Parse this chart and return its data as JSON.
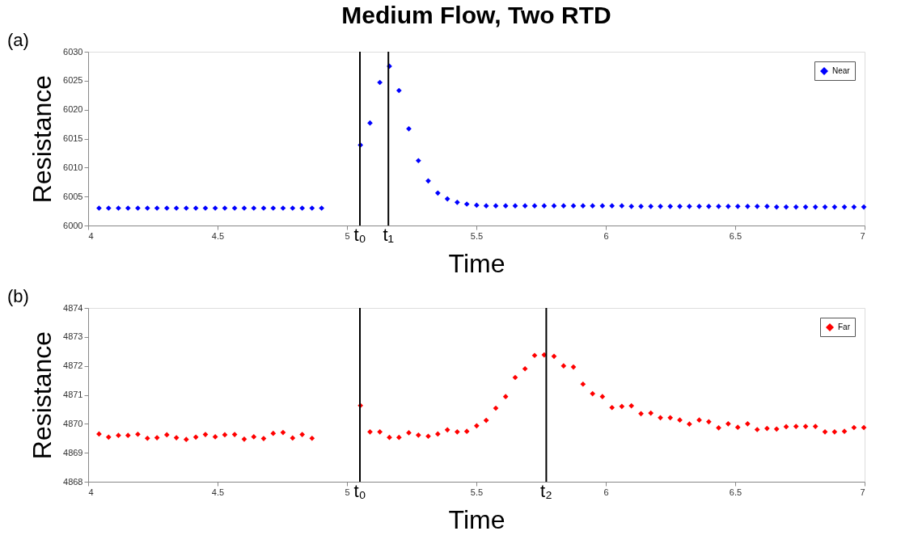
{
  "chart_data": [
    {
      "type": "scatter",
      "title": "Medium Flow, Two RTD",
      "xlabel": "Time",
      "ylabel": "Resistance",
      "annotations": [
        "(a)"
      ],
      "xlim": [
        4,
        7
      ],
      "xticks": [
        4,
        4.5,
        5,
        5.5,
        6,
        6.5,
        7
      ],
      "ylim": [
        6000,
        6030
      ],
      "yticks": [
        6000,
        6005,
        6010,
        6015,
        6020,
        6025,
        6030
      ],
      "grid": false,
      "legend": "top right",
      "marker": "diamond",
      "ref_lines": [
        {
          "axis": "x",
          "value": 5.05,
          "label": "t₀",
          "color": "#000000"
        },
        {
          "axis": "x",
          "value": 5.16,
          "label": "t₁",
          "color": "#000000"
        }
      ],
      "series": [
        {
          "name": "Near",
          "color": "#0000ff",
          "x": [
            4.042,
            4.079,
            4.117,
            4.154,
            4.192,
            4.229,
            4.266,
            4.304,
            4.341,
            4.379,
            4.416,
            4.453,
            4.491,
            4.528,
            4.566,
            4.603,
            4.64,
            4.678,
            4.715,
            4.753,
            4.79,
            4.827,
            4.865,
            4.902,
            5.052,
            5.089,
            5.127,
            5.164,
            5.201,
            5.239,
            5.276,
            5.314,
            5.351,
            5.388,
            5.426,
            5.463,
            5.501,
            5.538,
            5.575,
            5.613,
            5.65,
            5.688,
            5.725,
            5.762,
            5.8,
            5.837,
            5.875,
            5.912,
            5.949,
            5.987,
            6.024,
            6.062,
            6.099,
            6.136,
            6.174,
            6.211,
            6.249,
            6.286,
            6.323,
            6.361,
            6.398,
            6.436,
            6.473,
            6.51,
            6.548,
            6.585,
            6.623,
            6.66,
            6.697,
            6.735,
            6.772,
            6.81,
            6.847,
            6.884,
            6.922,
            6.959,
            6.997
          ],
          "values": [
            6003,
            6003,
            6003,
            6003,
            6003,
            6003,
            6003,
            6003,
            6003,
            6003,
            6003,
            6003,
            6003,
            6003,
            6003,
            6003,
            6003,
            6003,
            6003,
            6003,
            6003,
            6003,
            6003,
            6003,
            6013.9,
            6017.7,
            6024.7,
            6027.5,
            6023.3,
            6016.7,
            6011.2,
            6007.7,
            6005.6,
            6004.6,
            6004.0,
            6003.7,
            6003.5,
            6003.4,
            6003.4,
            6003.4,
            6003.4,
            6003.4,
            6003.4,
            6003.4,
            6003.4,
            6003.4,
            6003.4,
            6003.4,
            6003.4,
            6003.4,
            6003.4,
            6003.4,
            6003.3,
            6003.3,
            6003.3,
            6003.3,
            6003.3,
            6003.3,
            6003.3,
            6003.3,
            6003.3,
            6003.3,
            6003.3,
            6003.3,
            6003.3,
            6003.3,
            6003.3,
            6003.2,
            6003.2,
            6003.2,
            6003.2,
            6003.2,
            6003.2,
            6003.2,
            6003.2,
            6003.2,
            6003.2
          ]
        }
      ]
    },
    {
      "type": "scatter",
      "xlabel": "Time",
      "ylabel": "Resistance",
      "annotations": [
        "(b)"
      ],
      "xlim": [
        4,
        7
      ],
      "xticks": [
        4,
        4.5,
        5,
        5.5,
        6,
        6.5,
        7
      ],
      "ylim": [
        4868,
        4874
      ],
      "yticks": [
        4868,
        4869,
        4870,
        4871,
        4872,
        4873,
        4874
      ],
      "grid": false,
      "legend": "top right",
      "marker": "diamond",
      "ref_lines": [
        {
          "axis": "x",
          "value": 5.05,
          "label": "t₀",
          "color": "#000000"
        },
        {
          "axis": "x",
          "value": 5.77,
          "label": "t₂",
          "color": "#000000"
        }
      ],
      "series": [
        {
          "name": "Far",
          "color": "#ff0000",
          "x": [
            4.042,
            4.079,
            4.117,
            4.154,
            4.192,
            4.229,
            4.266,
            4.304,
            4.341,
            4.379,
            4.416,
            4.453,
            4.491,
            4.528,
            4.566,
            4.603,
            4.64,
            4.678,
            4.715,
            4.753,
            4.79,
            4.827,
            4.865,
            5.052,
            5.089,
            5.127,
            5.164,
            5.201,
            5.239,
            5.276,
            5.314,
            5.351,
            5.388,
            5.426,
            5.463,
            5.501,
            5.538,
            5.575,
            5.613,
            5.65,
            5.688,
            5.725,
            5.762,
            5.8,
            5.837,
            5.875,
            5.912,
            5.949,
            5.987,
            6.024,
            6.062,
            6.099,
            6.136,
            6.174,
            6.211,
            6.249,
            6.286,
            6.323,
            6.361,
            6.398,
            6.436,
            6.473,
            6.51,
            6.548,
            6.585,
            6.623,
            6.66,
            6.697,
            6.735,
            6.772,
            6.81,
            6.847,
            6.884,
            6.922,
            6.959,
            6.997
          ],
          "values": [
            4869.65,
            4869.54,
            4869.6,
            4869.6,
            4869.64,
            4869.5,
            4869.52,
            4869.62,
            4869.52,
            4869.46,
            4869.54,
            4869.63,
            4869.55,
            4869.62,
            4869.63,
            4869.47,
            4869.55,
            4869.49,
            4869.67,
            4869.7,
            4869.51,
            4869.63,
            4869.5,
            4870.63,
            4869.72,
            4869.72,
            4869.53,
            4869.53,
            4869.69,
            4869.61,
            4869.57,
            4869.65,
            4869.79,
            4869.72,
            4869.74,
            4869.93,
            4870.12,
            4870.54,
            4870.94,
            4871.6,
            4871.9,
            4872.36,
            4872.38,
            4872.33,
            4872.0,
            4871.96,
            4871.37,
            4871.04,
            4870.94,
            4870.56,
            4870.6,
            4870.62,
            4870.35,
            4870.37,
            4870.21,
            4870.21,
            4870.13,
            4869.99,
            4870.13,
            4870.07,
            4869.86,
            4870.0,
            4869.88,
            4870.0,
            4869.8,
            4869.84,
            4869.82,
            4869.9,
            4869.91,
            4869.91,
            4869.91,
            4869.72,
            4869.72,
            4869.74,
            4869.87,
            4869.87
          ]
        }
      ]
    }
  ]
}
